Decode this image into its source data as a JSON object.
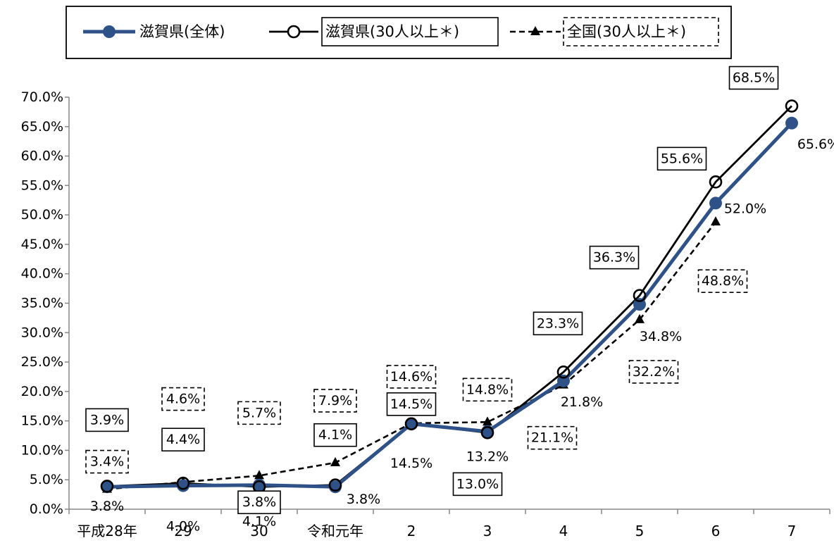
{
  "chart_data": {
    "type": "line",
    "categories": [
      "平成28年",
      "29",
      "30",
      "令和元年",
      "2",
      "3",
      "4",
      "5",
      "6",
      "7"
    ],
    "ylim": [
      0,
      70
    ],
    "ytick_step": 5,
    "ytick_labels": [
      "0.0%",
      "5.0%",
      "10.0%",
      "15.0%",
      "20.0%",
      "25.0%",
      "30.0%",
      "35.0%",
      "40.0%",
      "45.0%",
      "50.0%",
      "55.0%",
      "60.0%",
      "65.0%",
      "70.0%"
    ],
    "grid": false,
    "legend_position": "top",
    "series": [
      {
        "key": "all",
        "name": "滋賀県(全体)",
        "style": "thick-line-filled-circle",
        "color": "#2E5288",
        "values": [
          3.8,
          4.0,
          4.1,
          3.8,
          14.5,
          13.2,
          21.8,
          34.8,
          52.0,
          65.6
        ],
        "labels": [
          "3.8%",
          "4.0%",
          "4.1%",
          "3.8%",
          "14.5%",
          "13.2%",
          "21.8%",
          "34.8%",
          "52.0%",
          "65.6%"
        ]
      },
      {
        "key": "shiga30",
        "name": "滋賀県(30人以上＊)",
        "style": "solid-line-open-circle",
        "color": "#000000",
        "values": [
          3.9,
          4.4,
          3.8,
          4.1,
          14.5,
          13.0,
          23.3,
          36.3,
          55.6,
          68.5
        ],
        "labels": [
          "3.9%",
          "4.4%",
          "3.8%",
          "4.1%",
          "14.5%",
          "13.0%",
          "23.3%",
          "36.3%",
          "55.6%",
          "68.5%"
        ]
      },
      {
        "key": "national30",
        "name": "全国(30人以上＊)",
        "style": "dashed-line-triangle",
        "color": "#000000",
        "values": [
          3.4,
          4.6,
          5.7,
          7.9,
          14.6,
          14.8,
          21.1,
          32.2,
          48.8,
          null
        ],
        "labels": [
          "3.4%",
          "4.6%",
          "5.7%",
          "7.9%",
          "14.6%",
          "14.8%",
          "21.1%",
          "32.2%",
          "48.8%",
          ""
        ]
      }
    ]
  }
}
